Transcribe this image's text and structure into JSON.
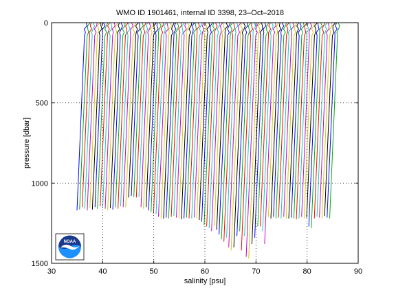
{
  "chart_data": {
    "type": "line",
    "title": "WMO ID 1901461, internal ID 3398, 23–Oct–2018",
    "xlabel": "salinity [psu]",
    "ylabel": "pressure [dbar]",
    "xlim": [
      30,
      90
    ],
    "ylim": [
      1500,
      0
    ],
    "y_reversed": true,
    "xticks": [
      30,
      40,
      50,
      60,
      70,
      80,
      90
    ],
    "yticks": [
      0,
      500,
      1000,
      1500
    ],
    "grid": "dotted",
    "offset_profiles": {
      "count": 100,
      "salinity_offset_step": 0.5,
      "first_profile_surface_salinity": 36.8,
      "profile_colors": [
        "#0000ff",
        "#00aa00",
        "#ff0000",
        "#00cccc",
        "#cc00cc",
        "#cccc00",
        "#000000"
      ]
    },
    "profile_bottom_pressures": [
      1170,
      1165,
      1150,
      1160,
      1170,
      1155,
      1165,
      1150,
      1160,
      1145,
      1150,
      1160,
      1170,
      1155,
      1165,
      1150,
      1160,
      1145,
      1150,
      1150,
      1090,
      1080,
      1085,
      1090,
      1085,
      1150,
      1160,
      1150,
      1170,
      1180,
      1190,
      1195,
      1210,
      1220,
      1220,
      1215,
      1220,
      1210,
      1205,
      1215,
      1220,
      1225,
      1220,
      1215,
      1220,
      1220,
      1215,
      1220,
      1230,
      1240,
      1260,
      1270,
      1280,
      1300,
      1270,
      1290,
      1320,
      1350,
      1365,
      1340,
      1400,
      1420,
      1400,
      1330,
      1300,
      1420,
      1330,
      1460,
      1470,
      1380,
      1340,
      1270,
      1270,
      1300,
      1380,
      1210,
      1220,
      1210,
      1220,
      1215,
      1220,
      1210,
      1220,
      1220,
      1215,
      1220,
      1225,
      1220,
      1210,
      1220,
      1215,
      1270,
      1280,
      1220,
      1210,
      1215,
      1220,
      1205,
      1215,
      1220
    ]
  },
  "logo": {
    "label": "NOAA",
    "colors": {
      "sky": "#1a3a8c",
      "sea": "#1e90ff",
      "bird": "#ffffff"
    }
  }
}
